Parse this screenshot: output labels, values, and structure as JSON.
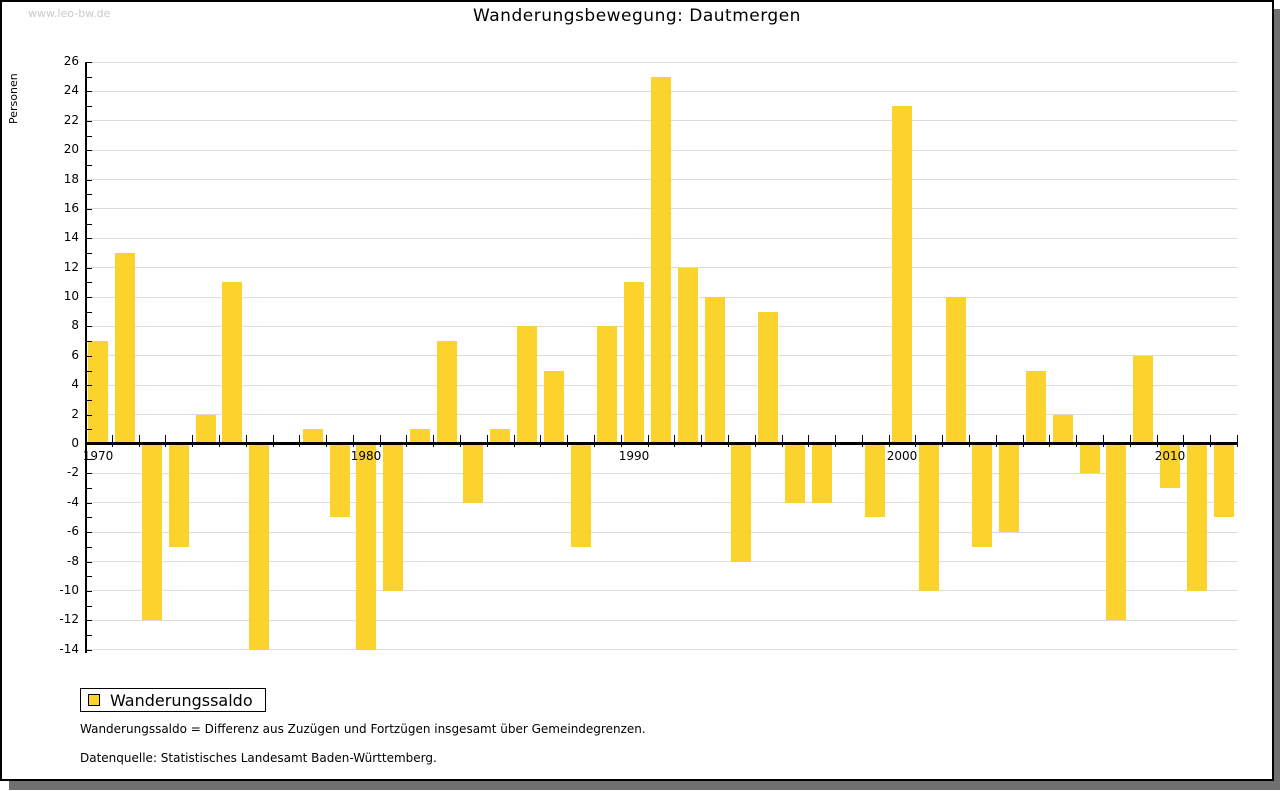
{
  "watermark": "www.leo-bw.de",
  "header": {
    "title": "Wanderungsbewegung: Dautmergen"
  },
  "y_axis_title": "Personen",
  "legend": {
    "label": "Wanderungssaldo",
    "swatch_color": "#fcd32d"
  },
  "footnotes": {
    "definition": "Wanderungssaldo = Differenz aus Zuzügen und Fortzügen insgesamt über Gemeindegrenzen.",
    "source": "Datenquelle: Statistisches Landesamt Baden-Württemberg."
  },
  "chart_data": {
    "type": "bar",
    "title": "Wanderungsbewegung: Dautmergen",
    "xlabel": "",
    "ylabel": "Personen",
    "series_name": "Wanderungssaldo",
    "years": [
      1970,
      1971,
      1972,
      1973,
      1974,
      1975,
      1976,
      1977,
      1978,
      1979,
      1980,
      1981,
      1982,
      1983,
      1984,
      1985,
      1986,
      1987,
      1988,
      1989,
      1990,
      1991,
      1992,
      1993,
      1994,
      1995,
      1996,
      1997,
      1998,
      1999,
      2000,
      2001,
      2002,
      2003,
      2004,
      2005,
      2006,
      2007,
      2008,
      2009,
      2010,
      2011,
      2012
    ],
    "values": [
      7,
      13,
      -12,
      -7,
      2,
      11,
      -14,
      0,
      1,
      -5,
      -14,
      -10,
      1,
      7,
      -4,
      1,
      8,
      5,
      -7,
      8,
      11,
      25,
      12,
      10,
      -8,
      9,
      -4,
      -4,
      0,
      -5,
      23,
      -10,
      10,
      -7,
      -6,
      5,
      2,
      -2,
      -12,
      6,
      -3,
      -10,
      -5
    ],
    "ylim": [
      -14,
      26
    ],
    "ytick_step": 2,
    "x_decade_labels": [
      "1970",
      "1980",
      "1990",
      "2000",
      "2010"
    ],
    "grid": true,
    "legend_position": "bottom-left",
    "bar_color": "#fcd32d",
    "grid_color": "#dcdcdc",
    "axis_color": "#000000"
  }
}
